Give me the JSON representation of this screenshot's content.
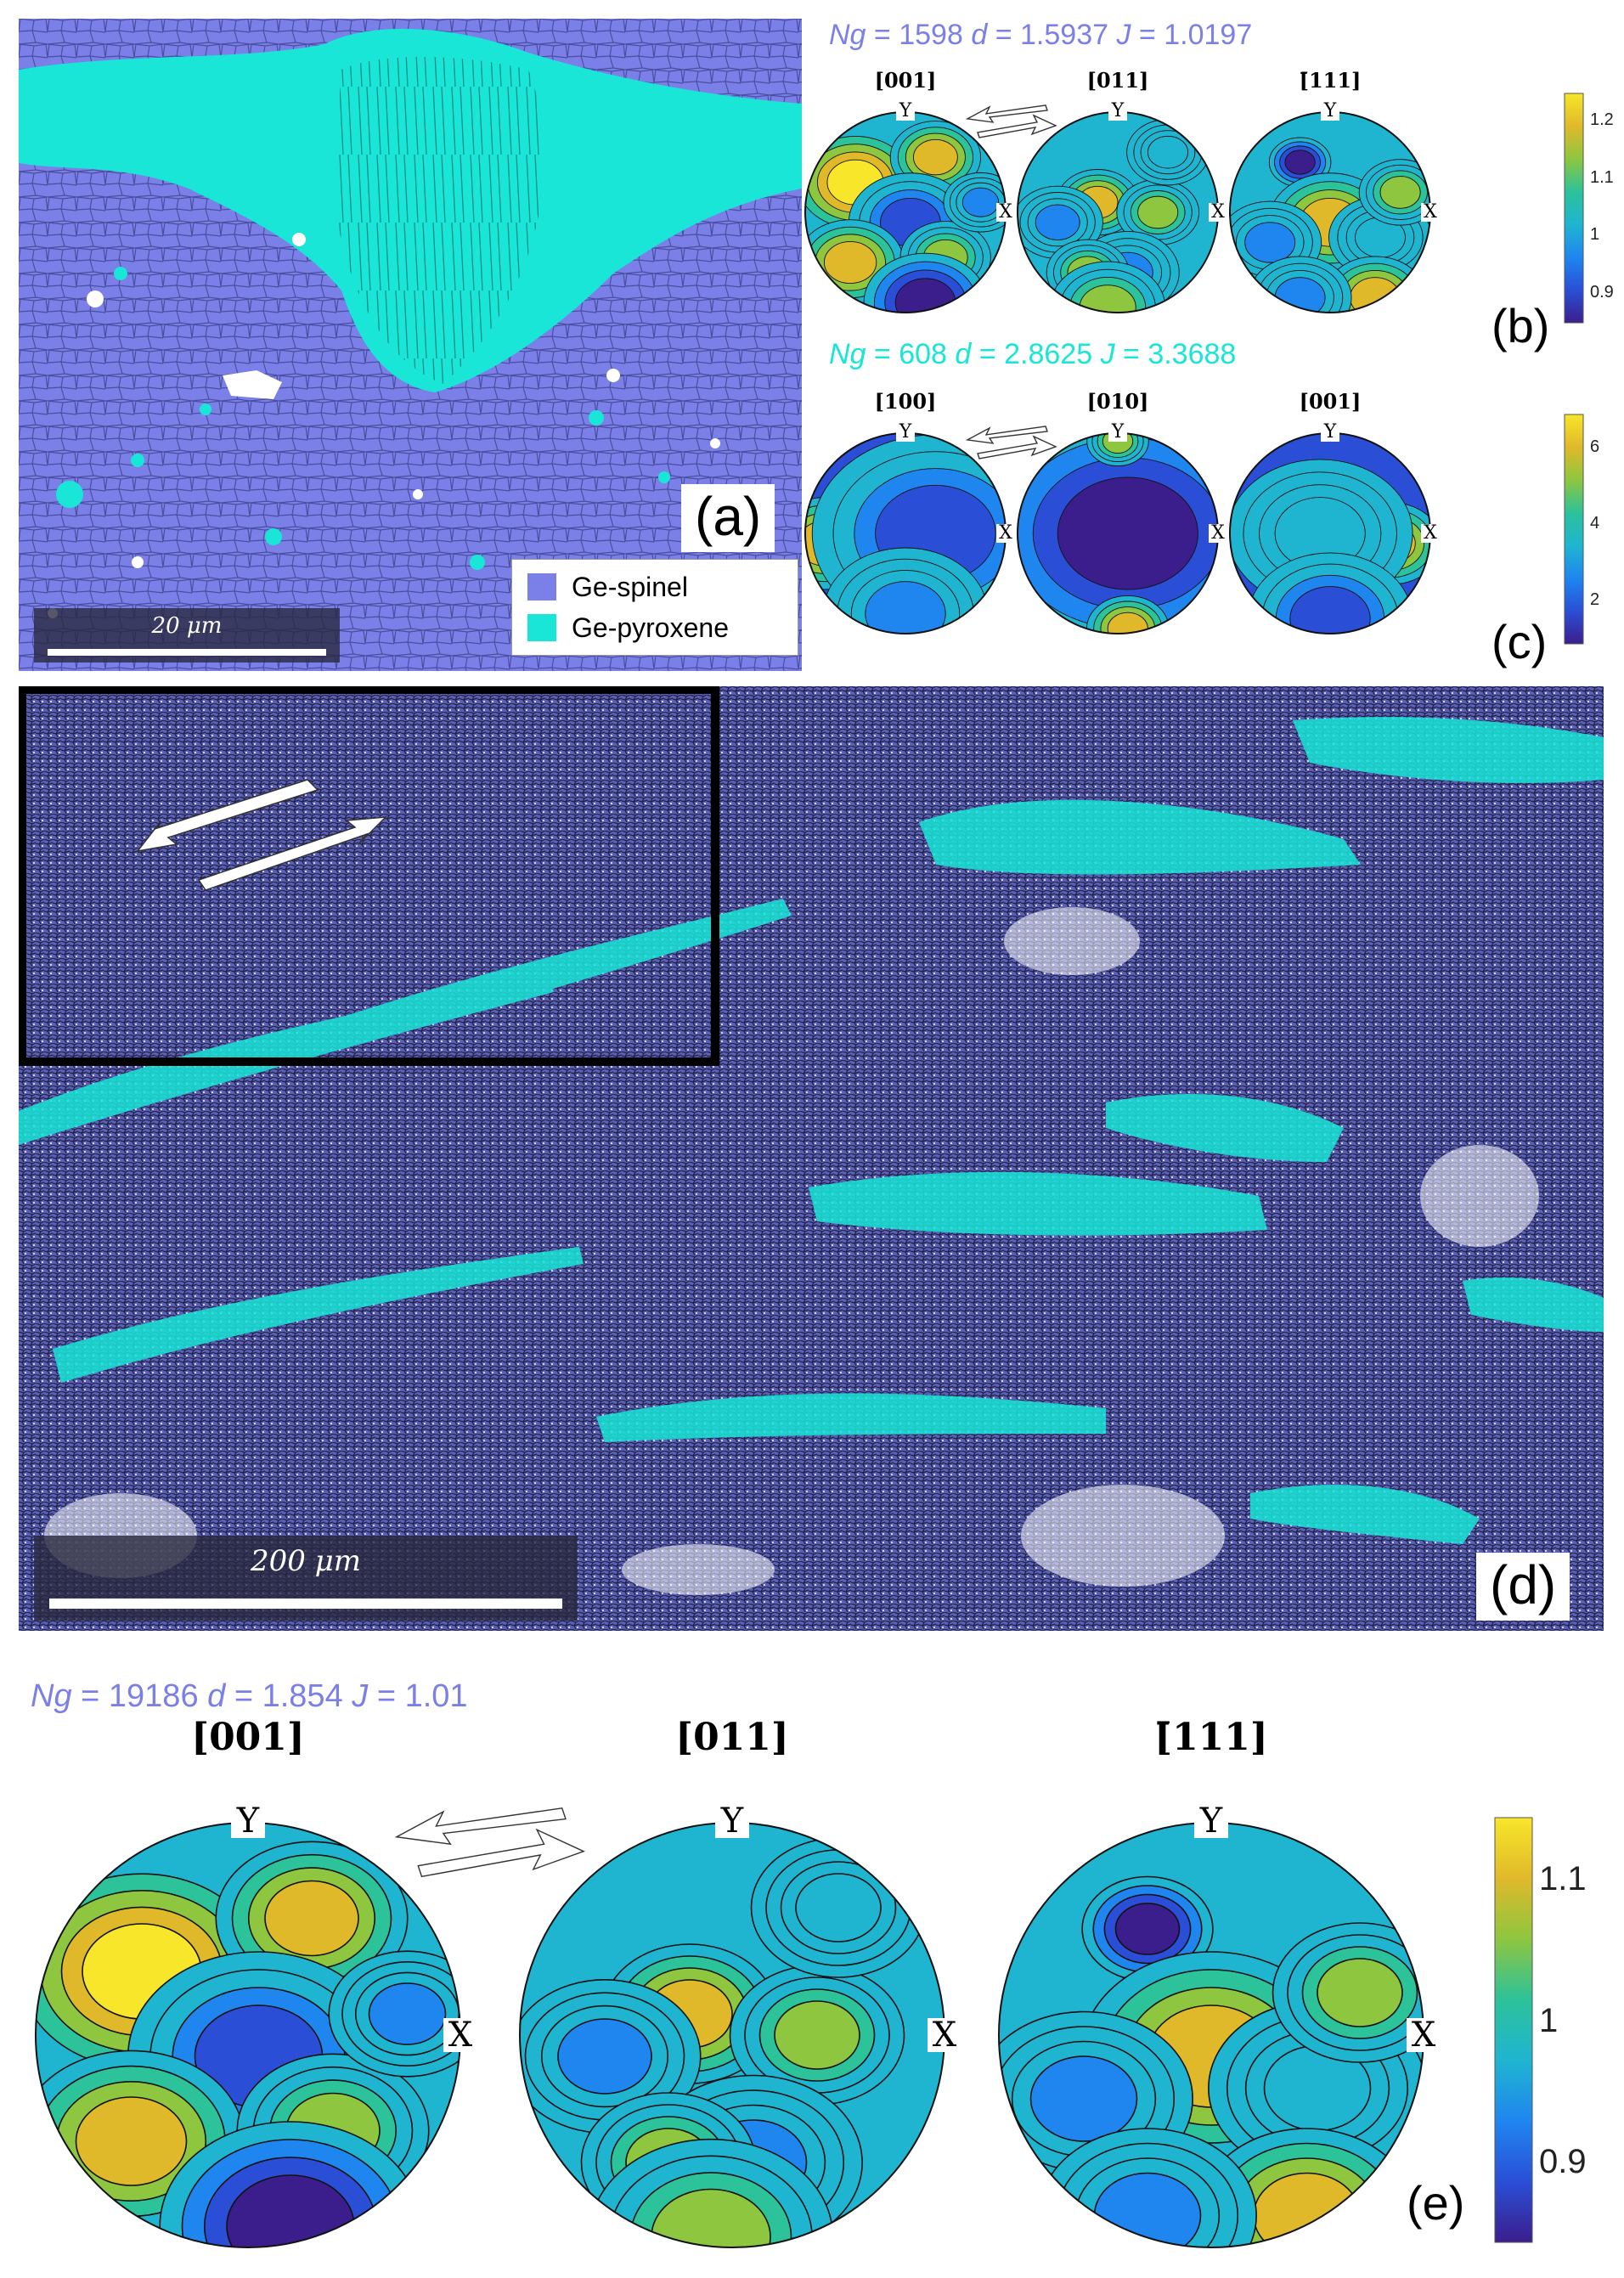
{
  "panels": {
    "a": {
      "label": "(a)",
      "scale_text": "20 μm",
      "legend": [
        {
          "name": "Ge-spinel",
          "color": "#7b7fe8"
        },
        {
          "name": "Ge-pyroxene",
          "color": "#19e6d6"
        }
      ]
    },
    "b": {
      "label": "(b)",
      "stats": {
        "ng": "1598",
        "d": "1.5937",
        "j": "1.0197"
      },
      "stat_color": "#7b7fe8",
      "titles": [
        "[001]",
        "[011]",
        "[̄111]"
      ],
      "axis_y": "Y",
      "axis_x": "X",
      "colorbar_ticks": [
        "1.2",
        "1.1",
        "1",
        "0.9"
      ]
    },
    "c": {
      "label": "(c)",
      "stats": {
        "ng": "608",
        "d": "2.8625",
        "j": "3.3688"
      },
      "stat_color": "#19e6d6",
      "titles": [
        "[100]",
        "[010]",
        "[001]"
      ],
      "axis_y": "Y",
      "axis_x": "X",
      "colorbar_ticks": [
        "6",
        "4",
        "2"
      ]
    },
    "d": {
      "label": "(d)",
      "scale_text": "200 μm"
    },
    "e": {
      "label": "(e)",
      "stats": {
        "ng": "19186",
        "d": "1.854",
        "j": "1.01"
      },
      "stat_color": "#7b7fe8",
      "titles": [
        "[001]",
        "[011]",
        "[̄111]"
      ],
      "axis_y": "Y",
      "axis_x": "X",
      "colorbar_ticks": [
        "1.1",
        "1",
        "0.9"
      ]
    }
  },
  "stat_keys": {
    "ng": "Ng",
    "d": "d",
    "j": "J",
    "eq": "="
  },
  "colors": {
    "spinel": "#7b7fe8",
    "pyroxene": "#19e6d6",
    "colormap": [
      "#3b1e8c",
      "#2a4fd6",
      "#1f86f0",
      "#1fb5d0",
      "#2cc29a",
      "#8ec63f",
      "#e0b92a",
      "#f7e62a"
    ]
  }
}
